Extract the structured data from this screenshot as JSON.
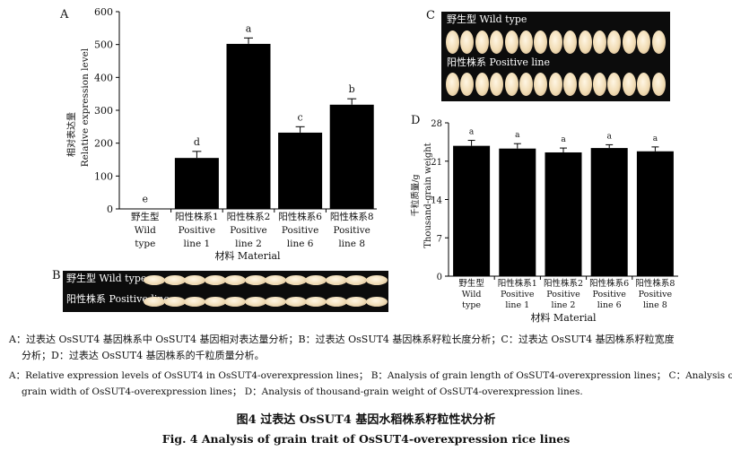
{
  "panel_a": {
    "label": "A",
    "ylabel_cn": "相对表达量",
    "ylabel_en": "Relative expression level",
    "xlabel": "材料 Material"
  },
  "panel_b": {
    "label": "B",
    "caption_wild": "野生型  Wild type",
    "caption_positive": "阳性株系  Positive line"
  },
  "panel_c": {
    "label": "C",
    "caption_wild": "野生型  Wild type",
    "caption_positive": "阳性株系  Positive line"
  },
  "panel_d": {
    "label": "D",
    "ylabel_cn": "千粒质量/g",
    "ylabel_en": "Thousand-grain weight",
    "xlabel": "材料 Material"
  },
  "chart_data": [
    {
      "panel": "A",
      "type": "bar",
      "categories": [
        [
          "野生型",
          "Wild",
          "type"
        ],
        [
          "阳性株系1",
          "Positive",
          "line 1"
        ],
        [
          "阳性株系2",
          "Positive",
          "line 2"
        ],
        [
          "阳性株系6",
          "Positive",
          "line 6"
        ],
        [
          "阳性株系8",
          "Positive",
          "line 8"
        ]
      ],
      "values": [
        1,
        155,
        502,
        232,
        317
      ],
      "errors": [
        0,
        20,
        18,
        18,
        18
      ],
      "significance": [
        "e",
        "d",
        "a",
        "c",
        "b"
      ],
      "ylabel": "相对表达量 Relative expression level",
      "xlabel": "材料 Material",
      "ylim": [
        0,
        600
      ],
      "yticks": [
        0,
        100,
        200,
        300,
        400,
        500,
        600
      ],
      "bar_color": "#000000"
    },
    {
      "panel": "D",
      "type": "bar",
      "categories": [
        [
          "野生型",
          "Wild",
          "type"
        ],
        [
          "阳性株系1",
          "Positive",
          "line 1"
        ],
        [
          "阳性株系2",
          "Positive",
          "line 2"
        ],
        [
          "阳性株系6",
          "Positive",
          "line 6"
        ],
        [
          "阳性株系8",
          "Positive",
          "line 8"
        ]
      ],
      "values": [
        23.8,
        23.3,
        22.6,
        23.4,
        22.8
      ],
      "errors": [
        1.0,
        0.9,
        0.8,
        0.6,
        0.8
      ],
      "significance": [
        "a",
        "a",
        "a",
        "a",
        "a"
      ],
      "ylabel": "千粒质量/g Thousand-grain weight",
      "xlabel": "材料 Material",
      "ylim": [
        0,
        28
      ],
      "yticks": [
        0,
        7,
        14,
        21,
        28
      ],
      "bar_color": "#000000"
    }
  ],
  "captions": {
    "cn_line1": "A：过表达 OsSUT4 基因株系中 OsSUT4 基因相对表达量分析；B：过表达 OsSUT4 基因株系籽粒长度分析；C：过表达 OsSUT4 基因株系籽粒宽度",
    "cn_line2": "分析；D：过表达 OsSUT4 基因株系的千粒质量分析。",
    "en_line1": "A：Relative expression levels of OsSUT4 in OsSUT4-overexpression lines； B：Analysis of grain length of OsSUT4-overexpression lines； C：Analysis of",
    "en_line2": "grain width of OsSUT4-overexpression lines； D：Analysis of thousand-grain weight of OsSUT4-overexpression lines.",
    "fig_cn": "图4    过表达 OsSUT4 基因水稻株系籽粒性状分析",
    "fig_en": "Fig. 4    Analysis of grain trait of OsSUT4-overexpression rice lines"
  }
}
